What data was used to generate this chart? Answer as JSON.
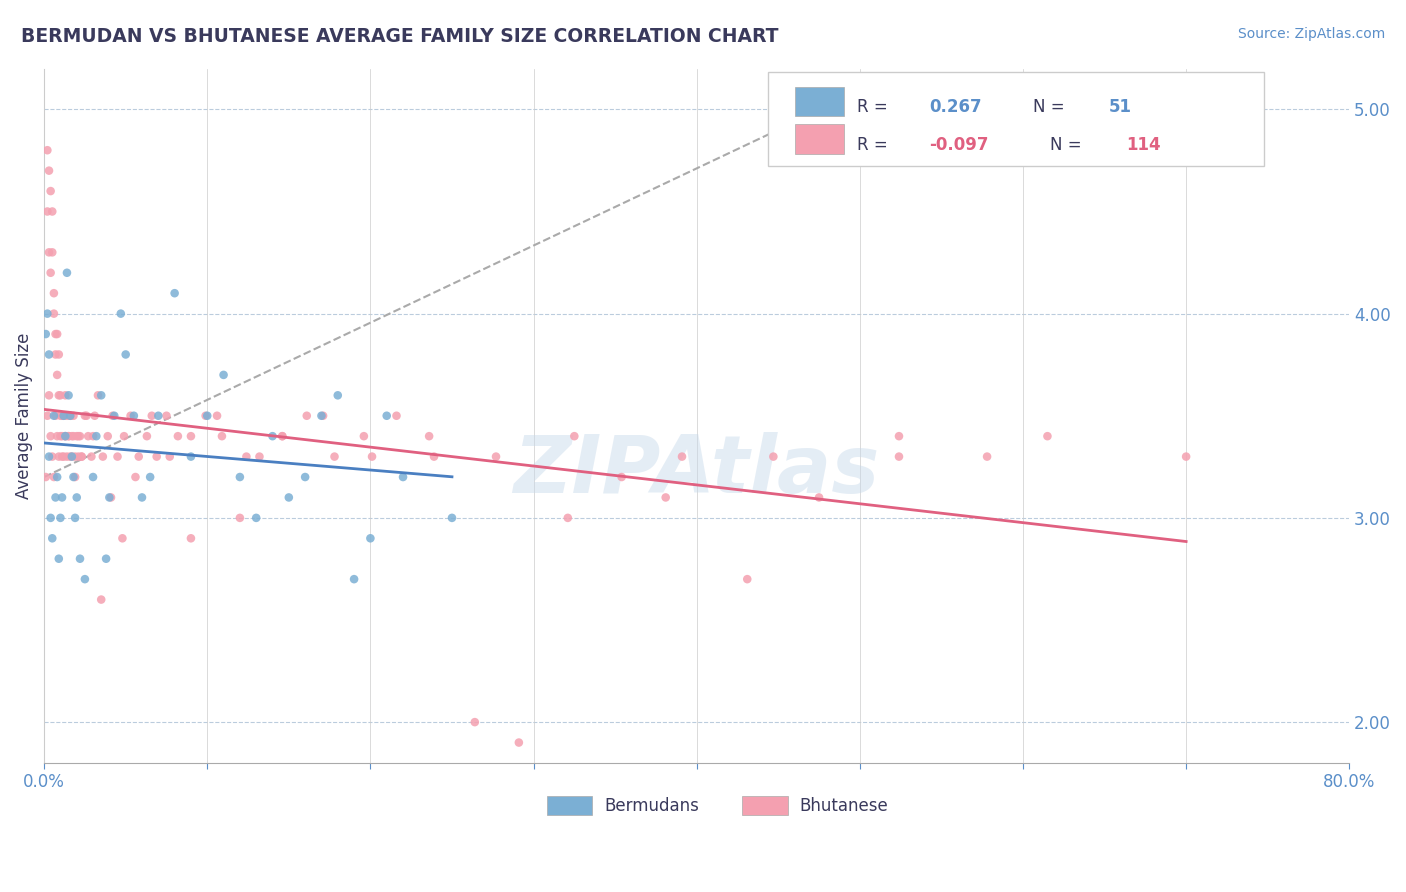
{
  "title": "BERMUDAN VS BHUTANESE AVERAGE FAMILY SIZE CORRELATION CHART",
  "source_text": "Source: ZipAtlas.com",
  "ylabel": "Average Family Size",
  "xlim": [
    0.0,
    0.8
  ],
  "ylim": [
    1.8,
    5.2
  ],
  "bermudan_color": "#7bafd4",
  "bhutanese_color": "#f4a0b0",
  "bermudan_trend_color": "#4a7fc1",
  "bhutanese_trend_color": "#e06080",
  "title_color": "#3a3a5c",
  "axis_color": "#5b8fc9",
  "watermark": "ZIPAtlas",
  "bermudans_x": [
    0.001,
    0.002,
    0.003,
    0.004,
    0.005,
    0.006,
    0.007,
    0.008,
    0.009,
    0.01,
    0.011,
    0.012,
    0.013,
    0.014,
    0.015,
    0.016,
    0.017,
    0.018,
    0.019,
    0.02,
    0.022,
    0.025,
    0.03,
    0.032,
    0.035,
    0.038,
    0.04,
    0.043,
    0.047,
    0.05,
    0.055,
    0.06,
    0.065,
    0.07,
    0.08,
    0.09,
    0.1,
    0.11,
    0.12,
    0.13,
    0.14,
    0.15,
    0.16,
    0.17,
    0.18,
    0.19,
    0.2,
    0.21,
    0.22,
    0.25,
    0.003
  ],
  "bermudans_y": [
    3.9,
    4.0,
    3.3,
    3.0,
    2.9,
    3.5,
    3.1,
    3.2,
    2.8,
    3.0,
    3.1,
    3.5,
    3.4,
    4.2,
    3.6,
    3.5,
    3.3,
    3.2,
    3.0,
    3.1,
    2.8,
    2.7,
    3.2,
    3.4,
    3.6,
    2.8,
    3.1,
    3.5,
    4.0,
    3.8,
    3.5,
    3.1,
    3.2,
    3.5,
    4.1,
    3.3,
    3.5,
    3.7,
    3.2,
    3.0,
    3.4,
    3.1,
    3.2,
    3.5,
    3.6,
    2.7,
    2.9,
    3.5,
    3.2,
    3.0,
    3.8
  ],
  "bhutanese_x": [
    0.001,
    0.002,
    0.002,
    0.003,
    0.003,
    0.004,
    0.004,
    0.005,
    0.005,
    0.006,
    0.006,
    0.007,
    0.007,
    0.008,
    0.008,
    0.009,
    0.009,
    0.01,
    0.01,
    0.011,
    0.011,
    0.012,
    0.012,
    0.013,
    0.013,
    0.014,
    0.015,
    0.016,
    0.016,
    0.017,
    0.018,
    0.019,
    0.02,
    0.021,
    0.022,
    0.023,
    0.025,
    0.027,
    0.029,
    0.031,
    0.033,
    0.036,
    0.039,
    0.042,
    0.045,
    0.049,
    0.053,
    0.058,
    0.063,
    0.069,
    0.075,
    0.082,
    0.09,
    0.099,
    0.109,
    0.12,
    0.132,
    0.146,
    0.161,
    0.178,
    0.196,
    0.216,
    0.239,
    0.264,
    0.291,
    0.321,
    0.354,
    0.391,
    0.431,
    0.475,
    0.524,
    0.578,
    0.002,
    0.003,
    0.004,
    0.005,
    0.006,
    0.007,
    0.008,
    0.009,
    0.01,
    0.011,
    0.012,
    0.013,
    0.014,
    0.015,
    0.016,
    0.017,
    0.018,
    0.019,
    0.021,
    0.023,
    0.026,
    0.03,
    0.035,
    0.041,
    0.048,
    0.056,
    0.066,
    0.077,
    0.09,
    0.106,
    0.124,
    0.146,
    0.171,
    0.201,
    0.236,
    0.277,
    0.325,
    0.381,
    0.447,
    0.524,
    0.615,
    0.7
  ],
  "bhutanese_y": [
    3.2,
    4.8,
    4.5,
    4.7,
    4.3,
    4.6,
    4.2,
    4.5,
    4.3,
    4.1,
    4.0,
    3.9,
    3.8,
    3.9,
    3.7,
    3.6,
    3.8,
    3.5,
    3.6,
    3.5,
    3.4,
    3.5,
    3.3,
    3.6,
    3.4,
    3.5,
    3.4,
    3.5,
    3.3,
    3.4,
    3.5,
    3.3,
    3.4,
    3.3,
    3.4,
    3.3,
    3.5,
    3.4,
    3.3,
    3.5,
    3.6,
    3.3,
    3.4,
    3.5,
    3.3,
    3.4,
    3.5,
    3.3,
    3.4,
    3.3,
    3.5,
    3.4,
    2.9,
    3.5,
    3.4,
    3.0,
    3.3,
    3.4,
    3.5,
    3.3,
    3.4,
    3.5,
    3.3,
    2.0,
    1.9,
    3.0,
    3.2,
    3.3,
    2.7,
    3.1,
    3.4,
    3.3,
    3.5,
    3.6,
    3.4,
    3.3,
    3.2,
    3.5,
    3.4,
    3.3,
    3.4,
    3.3,
    3.5,
    3.4,
    3.3,
    3.4,
    3.5,
    3.3,
    3.4,
    3.2,
    3.4,
    3.3,
    3.5,
    3.4,
    2.6,
    3.1,
    2.9,
    3.2,
    3.5,
    3.3,
    3.4,
    3.5,
    3.3,
    3.4,
    3.5,
    3.3,
    3.4,
    3.3,
    3.4,
    3.1,
    3.3,
    3.3,
    3.4,
    3.3
  ]
}
